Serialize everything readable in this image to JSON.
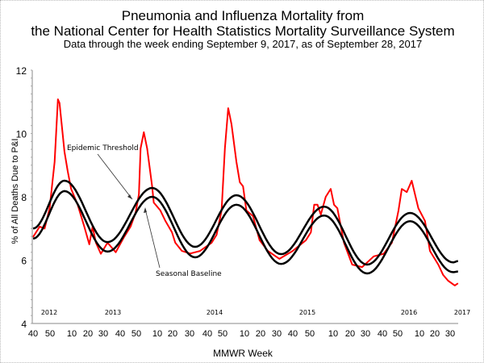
{
  "chart_data": {
    "type": "line",
    "title": "Pneumonia and Influenza Mortality from",
    "title_line2": "the National Center for Health Statistics Mortality Surveillance System",
    "subtitle": "Data through the week ending September 9, 2017, as of September 28, 2017",
    "xlabel": "MMWR Week",
    "ylabel": "% of All Deaths Due to P&I",
    "ylim": [
      4,
      12
    ],
    "yticks": [
      "12",
      "10",
      "8",
      "6",
      "4"
    ],
    "xlim": [
      "2012-40",
      "2017-36"
    ],
    "xtick_labels": [
      "40",
      "50",
      "10",
      "20",
      "30",
      "40",
      "50",
      "10",
      "20",
      "30",
      "40",
      "50",
      "10",
      "20",
      "30",
      "40",
      "50",
      "10",
      "20",
      "30",
      "40",
      "50",
      "10",
      "20",
      "30"
    ],
    "year_labels": [
      "2012",
      "2013",
      "2014",
      "2015",
      "2016",
      "2017"
    ],
    "grid": false,
    "legend": "none",
    "annotations": [
      "Epidemic Threshold",
      "Seasonal Baseline"
    ],
    "colors": {
      "observed": "#ff0000",
      "baseline": "#000000",
      "threshold": "#000000"
    },
    "series": [
      {
        "key": "observed",
        "points": [
          [
            "2012-40",
            6.73
          ],
          [
            "2012-44",
            7.06
          ],
          [
            "2012-47",
            7.0
          ],
          [
            "2012-50",
            7.64
          ],
          [
            "2013-01",
            9.1
          ],
          [
            "2013-03",
            11.08
          ],
          [
            "2013-04",
            10.96
          ],
          [
            "2013-07",
            9.43
          ],
          [
            "2013-09",
            8.8
          ],
          [
            "2013-11",
            8.25
          ],
          [
            "2013-15",
            7.75
          ],
          [
            "2013-19",
            7.06
          ],
          [
            "2013-22",
            6.5
          ],
          [
            "2013-24",
            7.06
          ],
          [
            "2013-26",
            6.55
          ],
          [
            "2013-29",
            6.2
          ],
          [
            "2013-33",
            6.55
          ],
          [
            "2013-38",
            6.25
          ],
          [
            "2013-43",
            6.73
          ],
          [
            "2013-47",
            7.06
          ],
          [
            "2013-50",
            7.5
          ],
          [
            "2013-52",
            8.08
          ],
          [
            "2014-01",
            9.53
          ],
          [
            "2014-03",
            10.04
          ],
          [
            "2014-05",
            9.53
          ],
          [
            "2014-08",
            8.33
          ],
          [
            "2014-09",
            7.82
          ],
          [
            "2014-13",
            7.57
          ],
          [
            "2014-16",
            7.24
          ],
          [
            "2014-20",
            6.88
          ],
          [
            "2014-22",
            6.55
          ],
          [
            "2014-26",
            6.29
          ],
          [
            "2014-31",
            6.21
          ],
          [
            "2014-37",
            6.29
          ],
          [
            "2014-44",
            6.55
          ],
          [
            "2014-47",
            6.8
          ],
          [
            "2014-50",
            7.57
          ],
          [
            "2014-52",
            9.53
          ],
          [
            "2015-01",
            10.8
          ],
          [
            "2015-03",
            10.29
          ],
          [
            "2015-06",
            9.1
          ],
          [
            "2015-08",
            8.46
          ],
          [
            "2015-10",
            8.33
          ],
          [
            "2015-12",
            7.57
          ],
          [
            "2015-16",
            7.39
          ],
          [
            "2015-20",
            6.63
          ],
          [
            "2015-25",
            6.29
          ],
          [
            "2015-32",
            6.04
          ],
          [
            "2015-40",
            6.29
          ],
          [
            "2015-48",
            6.63
          ],
          [
            "2015-51",
            6.88
          ],
          [
            "2016-01",
            7.75
          ],
          [
            "2016-03",
            7.75
          ],
          [
            "2016-05",
            7.44
          ],
          [
            "2016-08",
            8.0
          ],
          [
            "2016-11",
            8.25
          ],
          [
            "2016-13",
            7.75
          ],
          [
            "2016-15",
            7.64
          ],
          [
            "2016-19",
            6.55
          ],
          [
            "2016-24",
            5.86
          ],
          [
            "2016-30",
            5.78
          ],
          [
            "2016-37",
            6.12
          ],
          [
            "2016-43",
            6.2
          ],
          [
            "2016-48",
            6.55
          ],
          [
            "2016-52",
            7.57
          ],
          [
            "2017-02",
            8.25
          ],
          [
            "2017-05",
            8.15
          ],
          [
            "2017-08",
            8.51
          ],
          [
            "2017-12",
            7.64
          ],
          [
            "2017-16",
            7.24
          ],
          [
            "2017-19",
            6.29
          ],
          [
            "2017-24",
            5.86
          ],
          [
            "2017-27",
            5.53
          ],
          [
            "2017-30",
            5.35
          ],
          [
            "2017-34",
            5.2
          ],
          [
            "2017-36",
            5.27
          ]
        ]
      },
      {
        "key": "baseline",
        "name": "Seasonal Baseline",
        "points": [
          [
            "2012-40",
            6.68
          ],
          [
            "2013-07",
            8.18
          ],
          [
            "2013-33",
            6.27
          ],
          [
            "2014-08",
            8.0
          ],
          [
            "2014-34",
            6.09
          ],
          [
            "2015-06",
            7.75
          ],
          [
            "2015-33",
            5.88
          ],
          [
            "2016-07",
            7.41
          ],
          [
            "2016-33",
            5.58
          ],
          [
            "2017-07",
            7.23
          ],
          [
            "2017-33",
            5.62
          ],
          [
            "2017-36",
            5.64
          ]
        ]
      },
      {
        "key": "threshold",
        "name": "Epidemic Threshold",
        "points": [
          [
            "2012-40",
            7.0
          ],
          [
            "2013-07",
            8.51
          ],
          [
            "2013-33",
            6.57
          ],
          [
            "2014-08",
            8.28
          ],
          [
            "2014-34",
            6.42
          ],
          [
            "2015-06",
            8.05
          ],
          [
            "2015-33",
            6.19
          ],
          [
            "2016-07",
            7.69
          ],
          [
            "2016-33",
            5.86
          ],
          [
            "2017-07",
            7.49
          ],
          [
            "2017-33",
            5.93
          ],
          [
            "2017-36",
            5.97
          ]
        ]
      }
    ]
  }
}
